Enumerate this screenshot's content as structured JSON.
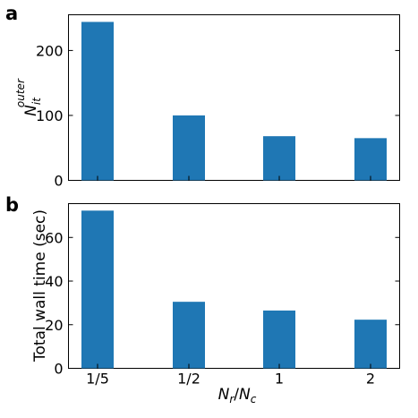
{
  "chart_data": [
    {
      "panel": "a",
      "type": "bar",
      "categories": [
        "1/5",
        "1/2",
        "1",
        "2"
      ],
      "values": [
        244,
        100,
        68,
        65
      ],
      "ylabel": "N_it^outer",
      "ylim": [
        0,
        255
      ],
      "yticks": [
        0,
        100,
        200
      ],
      "color": "#1f77b4",
      "grid": false
    },
    {
      "panel": "b",
      "type": "bar",
      "categories": [
        "1/5",
        "1/2",
        "1",
        "2"
      ],
      "values": [
        72.3,
        30.5,
        26.5,
        22.3
      ],
      "ylabel": "Total wall time (sec)",
      "xlabel": "N_r/N_c",
      "ylim": [
        0,
        75.5
      ],
      "yticks": [
        0,
        20,
        40,
        60
      ],
      "color": "#1f77b4",
      "grid": false
    }
  ],
  "labels": {
    "panel_a": "a",
    "panel_b": "b",
    "ylabel_a_base": "N",
    "ylabel_a_sub": "it",
    "ylabel_a_sup": "outer",
    "ylabel_b": "Total wall time (sec)",
    "xlabel_num_base": "N",
    "xlabel_num_sub": "r",
    "xlabel_sep": "/",
    "xlabel_den_base": "N",
    "xlabel_den_sub": "c"
  }
}
